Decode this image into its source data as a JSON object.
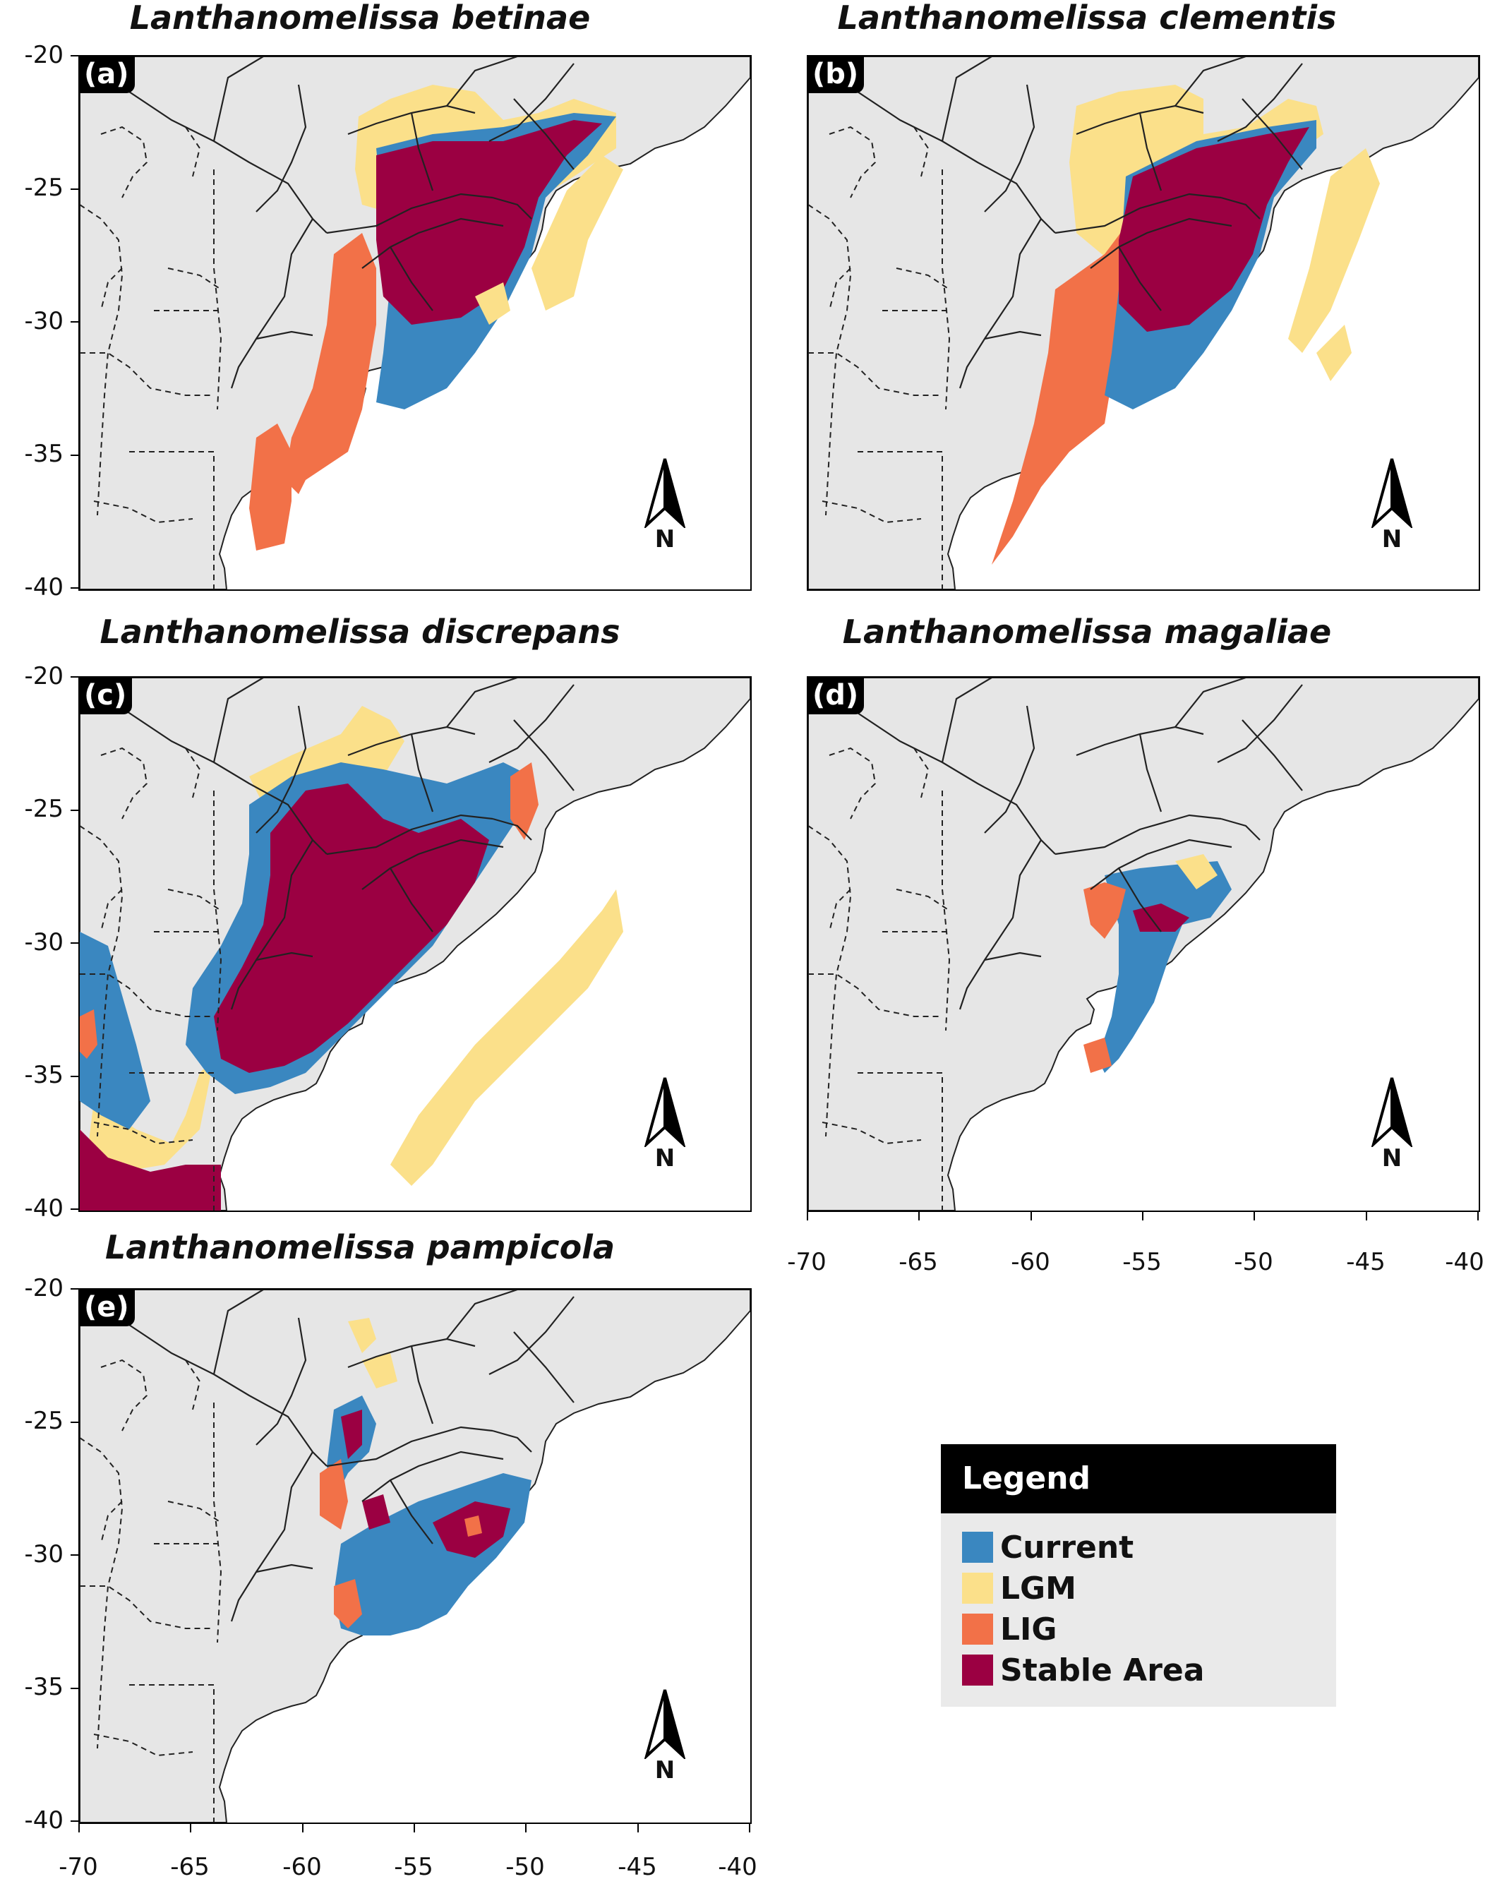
{
  "panels": [
    {
      "tag": "(a)",
      "title": "Lanthanomelissa betinae"
    },
    {
      "tag": "(b)",
      "title": "Lanthanomelissa clementis"
    },
    {
      "tag": "(c)",
      "title": "Lanthanomelissa discrepans"
    },
    {
      "tag": "(d)",
      "title": "Lanthanomelissa magaliae"
    },
    {
      "tag": "(e)",
      "title": "Lanthanomelissa pampicola"
    }
  ],
  "axes": {
    "y_ticks": [
      "-20",
      "-25",
      "-30",
      "-35",
      "-40"
    ],
    "x_ticks": [
      "-70",
      "-65",
      "-60",
      "-55",
      "-50",
      "-45",
      "-40"
    ],
    "lon_range": [
      -70,
      -40
    ],
    "lat_range": [
      -40,
      -20
    ]
  },
  "north_arrow": {
    "label": "N"
  },
  "legend": {
    "title": "Legend",
    "items": [
      {
        "label": "Current",
        "color": "#3a87c0"
      },
      {
        "label": "LGM",
        "color": "#fbe08a"
      },
      {
        "label": "LIG",
        "color": "#f27148"
      },
      {
        "label": "Stable Area",
        "color": "#9b0042"
      }
    ]
  },
  "colors": {
    "land": "#e6e6e6",
    "ocean": "#ffffff",
    "border": "#222222"
  }
}
